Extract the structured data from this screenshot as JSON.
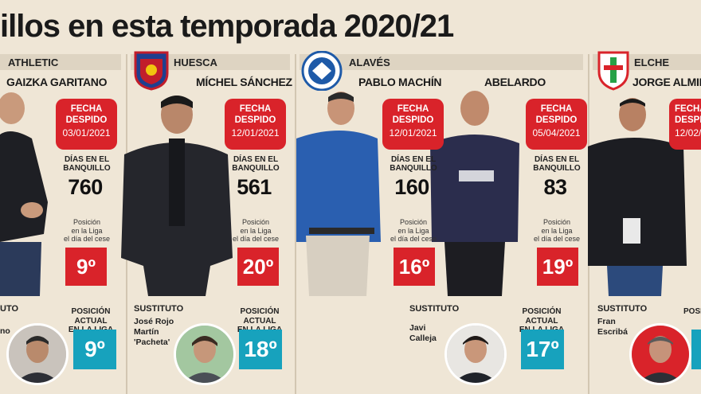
{
  "header": {
    "title": "illos en esta temporada 2020/21"
  },
  "labels": {
    "fecha": "FECHA\nDESPIDO",
    "dias": "DÍAS EN EL\nBANQUILLO",
    "posicion": "Posición\nen la Liga\nel día del cese",
    "sustituto": "SUSTITUTO",
    "posicion_actual": "POSICIÓN ACTUAL\nEN LA LIGA"
  },
  "teams": [
    {
      "name": "ATHLETIC",
      "coaches": [
        {
          "name": "GAIZKA GARITANO",
          "fecha": "03/01/2021",
          "dias": "760",
          "posicion": "9º"
        }
      ],
      "sustituto": "",
      "sustituto_label": "UTO",
      "sustituto_name": "no",
      "posicion_actual": "9º"
    },
    {
      "name": "HUESCA",
      "coaches": [
        {
          "name": "MÍCHEL SÁNCHEZ",
          "fecha": "12/01/2021",
          "dias": "561",
          "posicion": "20º"
        }
      ],
      "sustituto_label": "SUSTITUTO",
      "sustituto_name": "José Rojo\nMartín\n'Pacheta'",
      "posicion_actual": "18º"
    },
    {
      "name": "ALAVÉS",
      "coaches": [
        {
          "name": "PABLO MACHÍN",
          "fecha": "12/01/2021",
          "dias": "160",
          "posicion": "16º"
        },
        {
          "name": "ABELARDO",
          "fecha": "05/04/2021",
          "dias": "83",
          "posicion": "19º"
        }
      ],
      "sustituto_label": "SUSTITUTO",
      "sustituto_name": "Javi\nCalleja",
      "posicion_actual": "17º"
    },
    {
      "name": "ELCHE",
      "coaches": [
        {
          "name": "JORGE ALMIRO",
          "fecha": "12/02/",
          "dias": "",
          "posicion": ""
        }
      ],
      "sustituto_label": "SUSTITUTO",
      "sustituto_name": "Fran\nEscribá",
      "posicion_actual": ""
    }
  ],
  "colors": {
    "red": "#d9232a",
    "teal": "#17a2bd",
    "background": "#efe6d6"
  }
}
